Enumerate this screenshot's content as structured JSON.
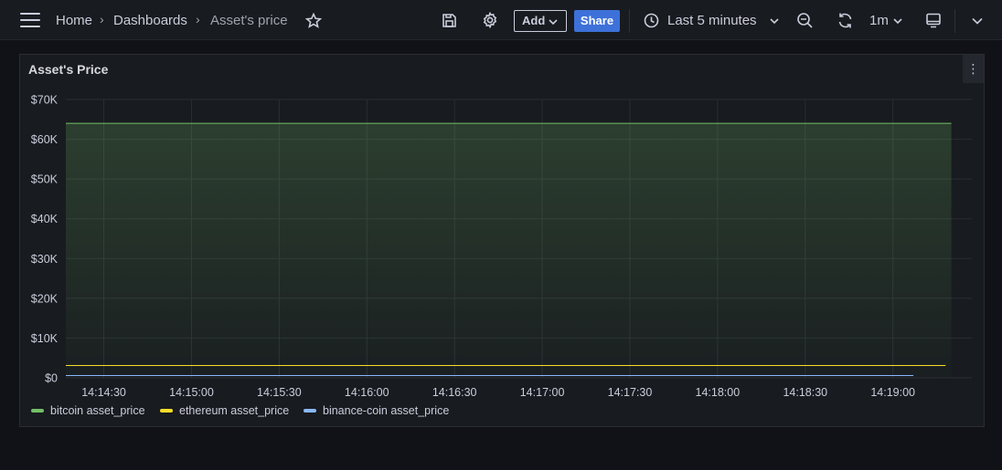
{
  "header": {
    "breadcrumbs": [
      "Home",
      "Dashboards",
      "Asset's price"
    ],
    "add_label": "Add",
    "share_label": "Share",
    "time_range": "Last 5 minutes",
    "refresh_interval": "1m"
  },
  "panel": {
    "title": "Asset's Price"
  },
  "colors": {
    "bitcoin": "#73bf69",
    "ethereum": "#fade2a",
    "binance": "#8ab8ff",
    "accent": "#3d71d9"
  },
  "chart_data": {
    "type": "line",
    "x_ticks": [
      "14:14:30",
      "14:15:00",
      "14:15:30",
      "14:16:00",
      "14:16:30",
      "14:17:00",
      "14:17:30",
      "14:18:00",
      "14:18:30",
      "14:19:00"
    ],
    "y_ticks": [
      "$0",
      "$10K",
      "$20K",
      "$30K",
      "$40K",
      "$50K",
      "$60K",
      "$70K"
    ],
    "ylim": [
      0,
      70000
    ],
    "xlim": [
      "14:14:17",
      "14:19:27"
    ],
    "grid": true,
    "legend_position": "bottom-left",
    "series": [
      {
        "name": "bitcoin asset_price",
        "x": [
          "14:14:17",
          "14:19:20"
        ],
        "values": [
          64000,
          64000
        ],
        "fill": true
      },
      {
        "name": "ethereum asset_price",
        "x": [
          "14:14:17",
          "14:19:18"
        ],
        "values": [
          3100,
          3100
        ],
        "fill": false
      },
      {
        "name": "binance-coin asset_price",
        "x": [
          "14:14:17",
          "14:19:07"
        ],
        "values": [
          570,
          570
        ],
        "fill": false
      }
    ]
  }
}
